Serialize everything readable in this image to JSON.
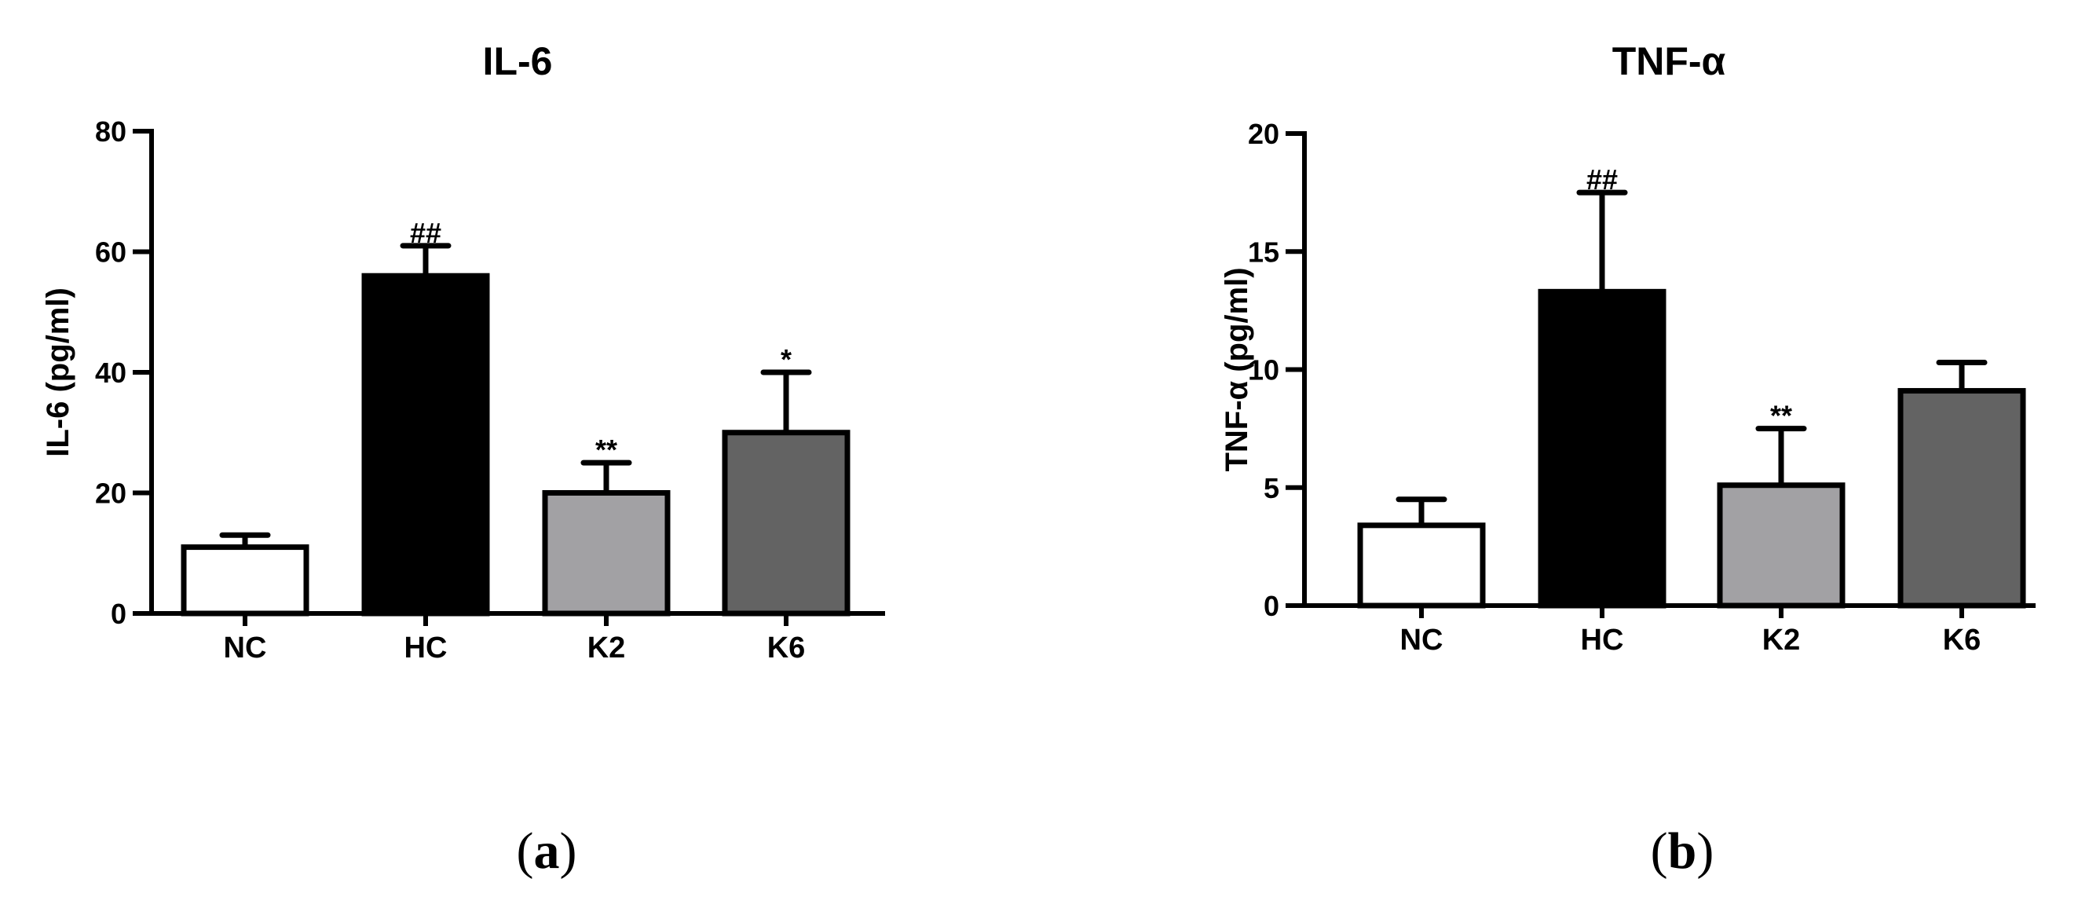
{
  "chart_data": [
    {
      "type": "bar",
      "panel_label": "a",
      "title": "IL-6",
      "xlabel": "",
      "ylabel": "IL-6 (pg/ml)",
      "ylim": [
        0,
        80
      ],
      "yticks": [
        "0",
        "20",
        "40",
        "60",
        "80"
      ],
      "categories": [
        "NC",
        "HC",
        "K2",
        "K6"
      ],
      "values": [
        11,
        56,
        20,
        30
      ],
      "errors": [
        2,
        5,
        5,
        10
      ],
      "annotations": [
        "",
        "##",
        "**",
        "*"
      ],
      "bar_colors": [
        "#ffffff",
        "#000000",
        "#a2a1a4",
        "#636363"
      ],
      "grid": false
    },
    {
      "type": "bar",
      "panel_label": "b",
      "title": "TNF-α",
      "xlabel": "",
      "ylabel": "TNF-α (pg/ml)",
      "ylim": [
        0,
        20
      ],
      "yticks": [
        "0",
        "5",
        "10",
        "15",
        "20"
      ],
      "categories": [
        "NC",
        "HC",
        "K2",
        "K6"
      ],
      "values": [
        3.4,
        13.3,
        5.1,
        9.1
      ],
      "errors": [
        1.1,
        4.2,
        2.4,
        1.2
      ],
      "annotations": [
        "",
        "##",
        "**",
        ""
      ],
      "bar_colors": [
        "#ffffff",
        "#000000",
        "#a2a1a4",
        "#636363"
      ],
      "grid": false
    }
  ]
}
